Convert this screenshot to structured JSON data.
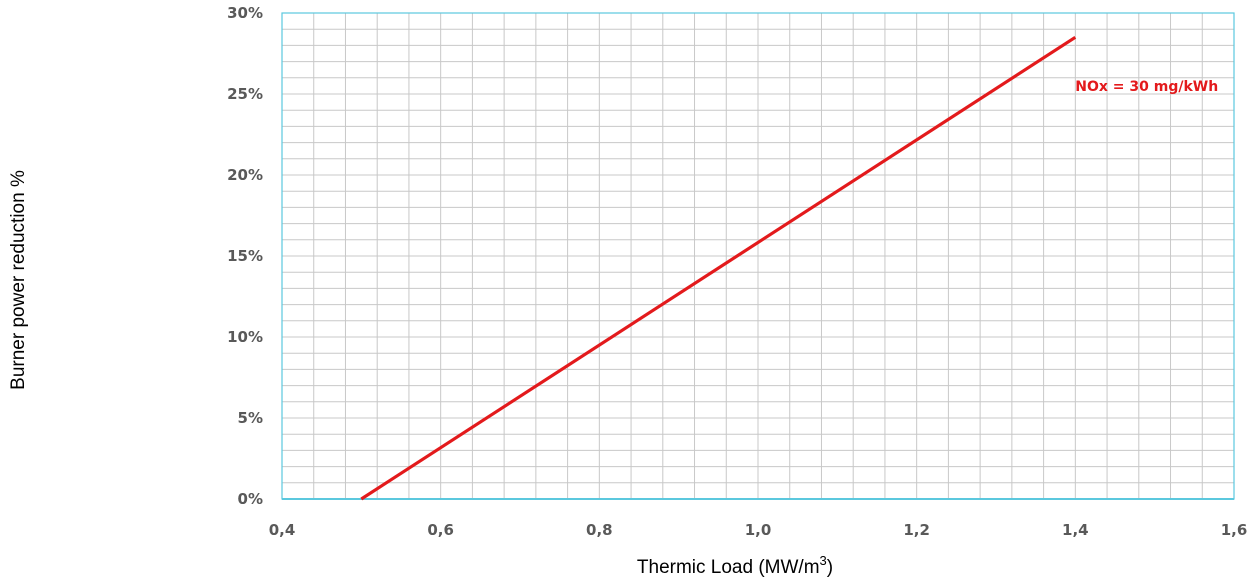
{
  "chart_data": {
    "type": "line",
    "title": "",
    "xlabel": "Thermic Load  (MW/m",
    "xlabel_sup": "3",
    "xlabel_suffix": ")",
    "ylabel": "Burner power reduction %",
    "xlim": [
      0.4,
      1.6
    ],
    "ylim": [
      0,
      30
    ],
    "x_ticks": [
      0.4,
      0.6,
      0.8,
      1.0,
      1.2,
      1.4,
      1.6
    ],
    "x_tick_labels": [
      "0,4",
      "0,6",
      "0,8",
      "1,0",
      "1,2",
      "1,4",
      "1,6"
    ],
    "y_ticks": [
      0,
      5,
      10,
      15,
      20,
      25,
      30
    ],
    "y_tick_labels": [
      "0%",
      "5%",
      "10%",
      "15%",
      "20%",
      "25%",
      "30%"
    ],
    "minor_x_step": 0.04,
    "minor_y_step": 1,
    "grid": true,
    "series": [
      {
        "name": "NOx = 30 mg/kWh",
        "color": "#e31a1c",
        "x": [
          0.5,
          1.4
        ],
        "y": [
          0,
          28.5
        ]
      }
    ],
    "annotations": [
      {
        "text": "NOx = 30 mg/kWh",
        "x": 1.49,
        "y": 25.5,
        "color": "#e31a1c"
      }
    ],
    "colors": {
      "grid_minor": "#c8c8c8",
      "frame": "#5bc8de",
      "tick_text": "#595959"
    }
  }
}
